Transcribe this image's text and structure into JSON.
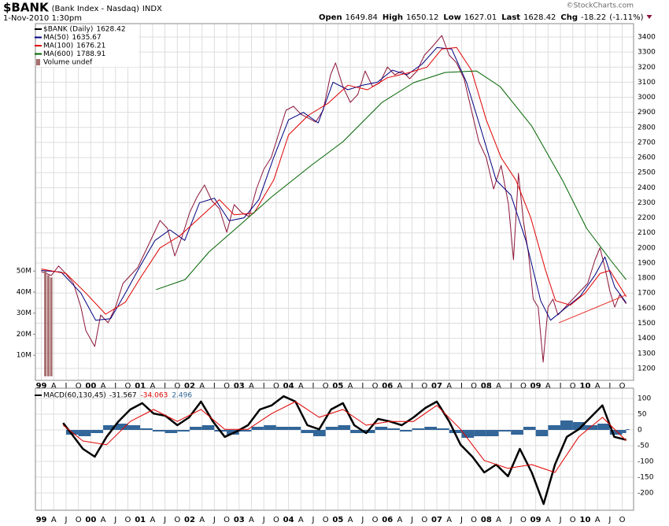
{
  "chart_data": [
    {
      "type": "line",
      "title": "$BANK",
      "subtitle": "(Bank Index - Nasdaq)",
      "exchange": "INDX",
      "date": "1-Nov-2010 1:30pm",
      "source": "©StockCharts.com",
      "quote": [
        {
          "label": "Open",
          "value": 1649.84
        },
        {
          "label": "High",
          "value": 1650.12
        },
        {
          "label": "Low",
          "value": 1627.01
        },
        {
          "label": "Last",
          "value": 1628.42
        },
        {
          "label": "Chg",
          "value": -18.22
        }
      ],
      "change_pct": {
        "value": -1.11,
        "label": "(-1.11%)"
      },
      "xlim": [
        1998.88,
        2010.98
      ],
      "xticks": [
        {
          "value": 1999,
          "label": "99"
        },
        {
          "value": 1999.25,
          "label": "A"
        },
        {
          "value": 1999.5,
          "label": "J"
        },
        {
          "value": 1999.75,
          "label": "O"
        },
        {
          "value": 2000,
          "label": "00"
        },
        {
          "value": 2000.25,
          "label": "A"
        },
        {
          "value": 2000.5,
          "label": "J"
        },
        {
          "value": 2000.75,
          "label": "O"
        },
        {
          "value": 2001,
          "label": "01"
        },
        {
          "value": 2001.25,
          "label": "A"
        },
        {
          "value": 2001.5,
          "label": "J"
        },
        {
          "value": 2001.75,
          "label": "O"
        },
        {
          "value": 2002,
          "label": "02"
        },
        {
          "value": 2002.25,
          "label": "A"
        },
        {
          "value": 2002.5,
          "label": "J"
        },
        {
          "value": 2002.75,
          "label": "O"
        },
        {
          "value": 2003,
          "label": "03"
        },
        {
          "value": 2003.25,
          "label": "A"
        },
        {
          "value": 2003.5,
          "label": "J"
        },
        {
          "value": 2003.75,
          "label": "O"
        },
        {
          "value": 2004,
          "label": "04"
        },
        {
          "value": 2004.25,
          "label": "A"
        },
        {
          "value": 2004.5,
          "label": "J"
        },
        {
          "value": 2004.75,
          "label": "O"
        },
        {
          "value": 2005,
          "label": "05"
        },
        {
          "value": 2005.25,
          "label": "A"
        },
        {
          "value": 2005.5,
          "label": "J"
        },
        {
          "value": 2005.75,
          "label": "O"
        },
        {
          "value": 2006,
          "label": "06"
        },
        {
          "value": 2006.25,
          "label": "A"
        },
        {
          "value": 2006.5,
          "label": "J"
        },
        {
          "value": 2006.75,
          "label": "O"
        },
        {
          "value": 2007,
          "label": "07"
        },
        {
          "value": 2007.25,
          "label": "A"
        },
        {
          "value": 2007.5,
          "label": "J"
        },
        {
          "value": 2007.75,
          "label": "O"
        },
        {
          "value": 2008,
          "label": "08"
        },
        {
          "value": 2008.25,
          "label": "A"
        },
        {
          "value": 2008.5,
          "label": "J"
        },
        {
          "value": 2008.75,
          "label": "O"
        },
        {
          "value": 2009,
          "label": "09"
        },
        {
          "value": 2009.25,
          "label": "A"
        },
        {
          "value": 2009.5,
          "label": "J"
        },
        {
          "value": 2009.75,
          "label": "O"
        },
        {
          "value": 2010,
          "label": "10"
        },
        {
          "value": 2010.25,
          "label": "A"
        },
        {
          "value": 2010.5,
          "label": "J"
        },
        {
          "value": 2010.75,
          "label": "O"
        }
      ],
      "ylim": [
        1121,
        3489
      ],
      "yticks": [
        1200,
        1300,
        1400,
        1500,
        1600,
        1700,
        1800,
        1900,
        2000,
        2100,
        2200,
        2300,
        2400,
        2500,
        2600,
        2700,
        2800,
        2900,
        3000,
        3100,
        3200,
        3300,
        3400
      ],
      "y2lim": [
        -1900000,
        167500000
      ],
      "y2ticks": [
        {
          "value": 10000000,
          "label": "10M"
        },
        {
          "value": 20000000,
          "label": "20M"
        },
        {
          "value": 30000000,
          "label": "30M"
        },
        {
          "value": 40000000,
          "label": "40M"
        },
        {
          "value": 50000000,
          "label": "50M"
        }
      ],
      "grid": true,
      "series": [
        {
          "name": "$BANK (Daily)",
          "color": "#8b1538",
          "x": [
            1999.0,
            1999.2,
            1999.35,
            1999.5,
            1999.65,
            1999.8,
            1999.9,
            2000.08,
            2000.2,
            2000.35,
            2000.5,
            2000.65,
            2000.8,
            2000.95,
            2001.1,
            2001.25,
            2001.4,
            2001.55,
            2001.7,
            2001.85,
            2002.0,
            2002.15,
            2002.3,
            2002.45,
            2002.6,
            2002.75,
            2002.9,
            2003.05,
            2003.2,
            2003.35,
            2003.5,
            2003.65,
            2003.8,
            2003.95,
            2004.1,
            2004.25,
            2004.4,
            2004.55,
            2004.7,
            2004.85,
            2004.95,
            2005.1,
            2005.25,
            2005.4,
            2005.55,
            2005.7,
            2005.85,
            2006.0,
            2006.15,
            2006.3,
            2006.45,
            2006.6,
            2006.75,
            2006.9,
            2007.1,
            2007.25,
            2007.4,
            2007.55,
            2007.7,
            2007.85,
            2008.0,
            2008.15,
            2008.3,
            2008.45,
            2008.55,
            2008.65,
            2008.75,
            2008.85,
            2008.95,
            2009.05,
            2009.15,
            2009.25,
            2009.35,
            2009.45,
            2009.6,
            2009.75,
            2009.9,
            2010.05,
            2010.2,
            2010.3,
            2010.4,
            2010.5,
            2010.6,
            2010.7,
            2010.83
          ],
          "values": [
            1843,
            1817,
            1880,
            1827,
            1764,
            1607,
            1451,
            1346,
            1555,
            1503,
            1607,
            1764,
            1817,
            1869,
            1973,
            2078,
            2182,
            2130,
            1947,
            2078,
            2235,
            2339,
            2418,
            2313,
            2261,
            2104,
            2287,
            2235,
            2209,
            2391,
            2522,
            2600,
            2757,
            2914,
            2940,
            2888,
            2862,
            2836,
            2914,
            3149,
            3228,
            3071,
            2966,
            3018,
            3175,
            3071,
            3097,
            3201,
            3149,
            3175,
            3123,
            3175,
            3280,
            3332,
            3410,
            3280,
            3228,
            3123,
            2914,
            2705,
            2600,
            2391,
            2548,
            2287,
            1921,
            2496,
            2182,
            1973,
            1660,
            1607,
            1242,
            1607,
            1660,
            1555,
            1607,
            1660,
            1712,
            1764,
            1921,
            2000,
            1869,
            1712,
            1607,
            1690,
            1628.42
          ]
        },
        {
          "name": "MA(50)",
          "color": "#000080",
          "x": [
            1999.0,
            1999.4,
            1999.8,
            2000.1,
            2000.4,
            2000.7,
            2001.0,
            2001.3,
            2001.6,
            2001.9,
            2002.2,
            2002.5,
            2002.8,
            2003.1,
            2003.4,
            2003.7,
            2004.0,
            2004.3,
            2004.6,
            2004.9,
            2005.2,
            2005.5,
            2005.8,
            2006.1,
            2006.4,
            2006.7,
            2007.0,
            2007.3,
            2007.6,
            2007.9,
            2008.2,
            2008.5,
            2008.8,
            2009.1,
            2009.3,
            2009.6,
            2009.9,
            2010.2,
            2010.4,
            2010.6,
            2010.83
          ],
          "values": [
            1850,
            1840,
            1700,
            1520,
            1530,
            1700,
            1880,
            2050,
            2120,
            2050,
            2300,
            2330,
            2180,
            2200,
            2320,
            2600,
            2850,
            2900,
            2830,
            3100,
            3050,
            3080,
            3100,
            3180,
            3150,
            3220,
            3330,
            3320,
            3100,
            2780,
            2450,
            2350,
            2050,
            1650,
            1520,
            1600,
            1680,
            1820,
            1940,
            1740,
            1635.67
          ]
        },
        {
          "name": "MA(100)",
          "color": "#e00000",
          "x": [
            1999.0,
            1999.5,
            1999.9,
            2000.3,
            2000.7,
            2001.0,
            2001.4,
            2001.8,
            2002.2,
            2002.6,
            2002.9,
            2003.3,
            2003.7,
            2004.0,
            2004.4,
            2004.8,
            2005.2,
            2005.6,
            2006.0,
            2006.4,
            2006.8,
            2007.1,
            2007.4,
            2007.7,
            2008.0,
            2008.3,
            2008.6,
            2008.9,
            2009.2,
            2009.4,
            2009.7,
            2010.0,
            2010.3,
            2010.5,
            2010.83
          ],
          "values": [
            1860,
            1830,
            1700,
            1560,
            1640,
            1800,
            2000,
            2080,
            2200,
            2320,
            2220,
            2230,
            2450,
            2750,
            2880,
            2960,
            3080,
            3050,
            3130,
            3160,
            3200,
            3320,
            3330,
            3180,
            2850,
            2600,
            2450,
            2200,
            1850,
            1650,
            1620,
            1700,
            1830,
            1850,
            1676.21
          ]
        },
        {
          "name": "MA(600)",
          "color": "#006400",
          "x": [
            2001.32,
            2001.91,
            2002.39,
            2003.03,
            2003.66,
            2004.46,
            2005.1,
            2005.89,
            2006.53,
            2007.17,
            2007.8,
            2008.28,
            2008.92,
            2009.55,
            2010.03,
            2010.51,
            2010.83
          ],
          "values": [
            1723,
            1790,
            1973,
            2156,
            2339,
            2548,
            2705,
            2966,
            3097,
            3165,
            3175,
            3071,
            2809,
            2444,
            2130,
            1921,
            1788.91
          ]
        },
        {
          "name": "Volume undef",
          "color": "#a87070",
          "type": "bar",
          "axis": "y2",
          "x": [
            1999.08,
            1999.14,
            1999.2
          ],
          "values": [
            50000000,
            48000000,
            47000000
          ]
        }
      ],
      "trendline": {
        "color": "#e8302a",
        "x": [
          2009.47,
          2010.83
        ],
        "values": [
          1503,
          1688
        ]
      }
    },
    {
      "type": "line",
      "title": "MACD(60,130,45)",
      "xlim": [
        1998.88,
        2010.98
      ],
      "ylim": [
        -255,
        132.5
      ],
      "yticks": [
        100,
        50,
        0,
        -50,
        -100,
        -150,
        -200
      ],
      "grid": true,
      "series": [
        {
          "color": "#336699",
          "type": "bar",
          "x": [
            1999.5,
            1999.75,
            2000,
            2000.25,
            2000.5,
            2000.75,
            2001,
            2001.25,
            2001.5,
            2001.75,
            2002,
            2002.25,
            2002.5,
            2002.75,
            2003,
            2003.25,
            2003.5,
            2003.75,
            2004,
            2004.25,
            2004.5,
            2004.75,
            2005,
            2005.25,
            2005.5,
            2005.75,
            2006,
            2006.25,
            2006.5,
            2006.75,
            2007,
            2007.25,
            2007.5,
            2007.75,
            2008,
            2008.25,
            2008.5,
            2008.75,
            2009,
            2009.25,
            2009.5,
            2009.75,
            2010,
            2010.25,
            2010.5,
            2010.75,
            2010.83
          ],
          "values": [
            -15,
            -20,
            -10,
            15,
            20,
            15,
            5,
            -5,
            -10,
            -5,
            10,
            15,
            -5,
            -15,
            -5,
            10,
            15,
            10,
            10,
            -10,
            -20,
            10,
            15,
            -10,
            -10,
            10,
            5,
            -5,
            5,
            10,
            5,
            -10,
            -25,
            -20,
            -20,
            -5,
            -15,
            10,
            -20,
            15,
            30,
            25,
            15,
            20,
            -15,
            -10,
            2.496
          ]
        },
        {
          "color": "#000000",
          "x": [
            1999.44,
            1999.6,
            1999.84,
            2000.08,
            2000.32,
            2000.56,
            2000.8,
            2001.04,
            2001.27,
            2001.51,
            2001.75,
            2001.99,
            2002.23,
            2002.47,
            2002.71,
            2002.95,
            2003.18,
            2003.42,
            2003.66,
            2003.9,
            2004.14,
            2004.38,
            2004.62,
            2004.86,
            2005.1,
            2005.33,
            2005.57,
            2005.81,
            2006.05,
            2006.29,
            2006.53,
            2006.77,
            2007.0,
            2007.25,
            2007.48,
            2007.72,
            2007.96,
            2008.2,
            2008.44,
            2008.68,
            2008.92,
            2009.16,
            2009.39,
            2009.63,
            2009.87,
            2010.11,
            2010.35,
            2010.59,
            2010.83
          ],
          "values": [
            22,
            -10,
            -60,
            -85,
            -22,
            27,
            65,
            85,
            52,
            45,
            15,
            40,
            90,
            27,
            -22,
            -5,
            15,
            65,
            78,
            107,
            90,
            15,
            2,
            65,
            85,
            15,
            -10,
            35,
            27,
            15,
            40,
            70,
            90,
            27,
            -47,
            -85,
            -135,
            -110,
            -147,
            -60,
            -135,
            -235,
            -110,
            -22,
            2,
            40,
            78,
            -22,
            -31.567
          ]
        },
        {
          "color": "#e00000",
          "x": [
            1999.44,
            1999.84,
            2000.32,
            2000.8,
            2001.27,
            2001.75,
            2002.23,
            2002.71,
            2003.18,
            2003.66,
            2004.14,
            2004.62,
            2005.1,
            2005.57,
            2006.05,
            2006.53,
            2007.0,
            2007.48,
            2007.96,
            2008.44,
            2008.92,
            2009.39,
            2009.87,
            2010.35,
            2010.83
          ],
          "values": [
            15,
            -35,
            -47,
            27,
            65,
            27,
            65,
            2,
            2,
            52,
            90,
            40,
            65,
            15,
            27,
            27,
            78,
            2,
            -97,
            -122,
            -110,
            -135,
            -22,
            40,
            -34.063
          ]
        }
      ]
    }
  ]
}
